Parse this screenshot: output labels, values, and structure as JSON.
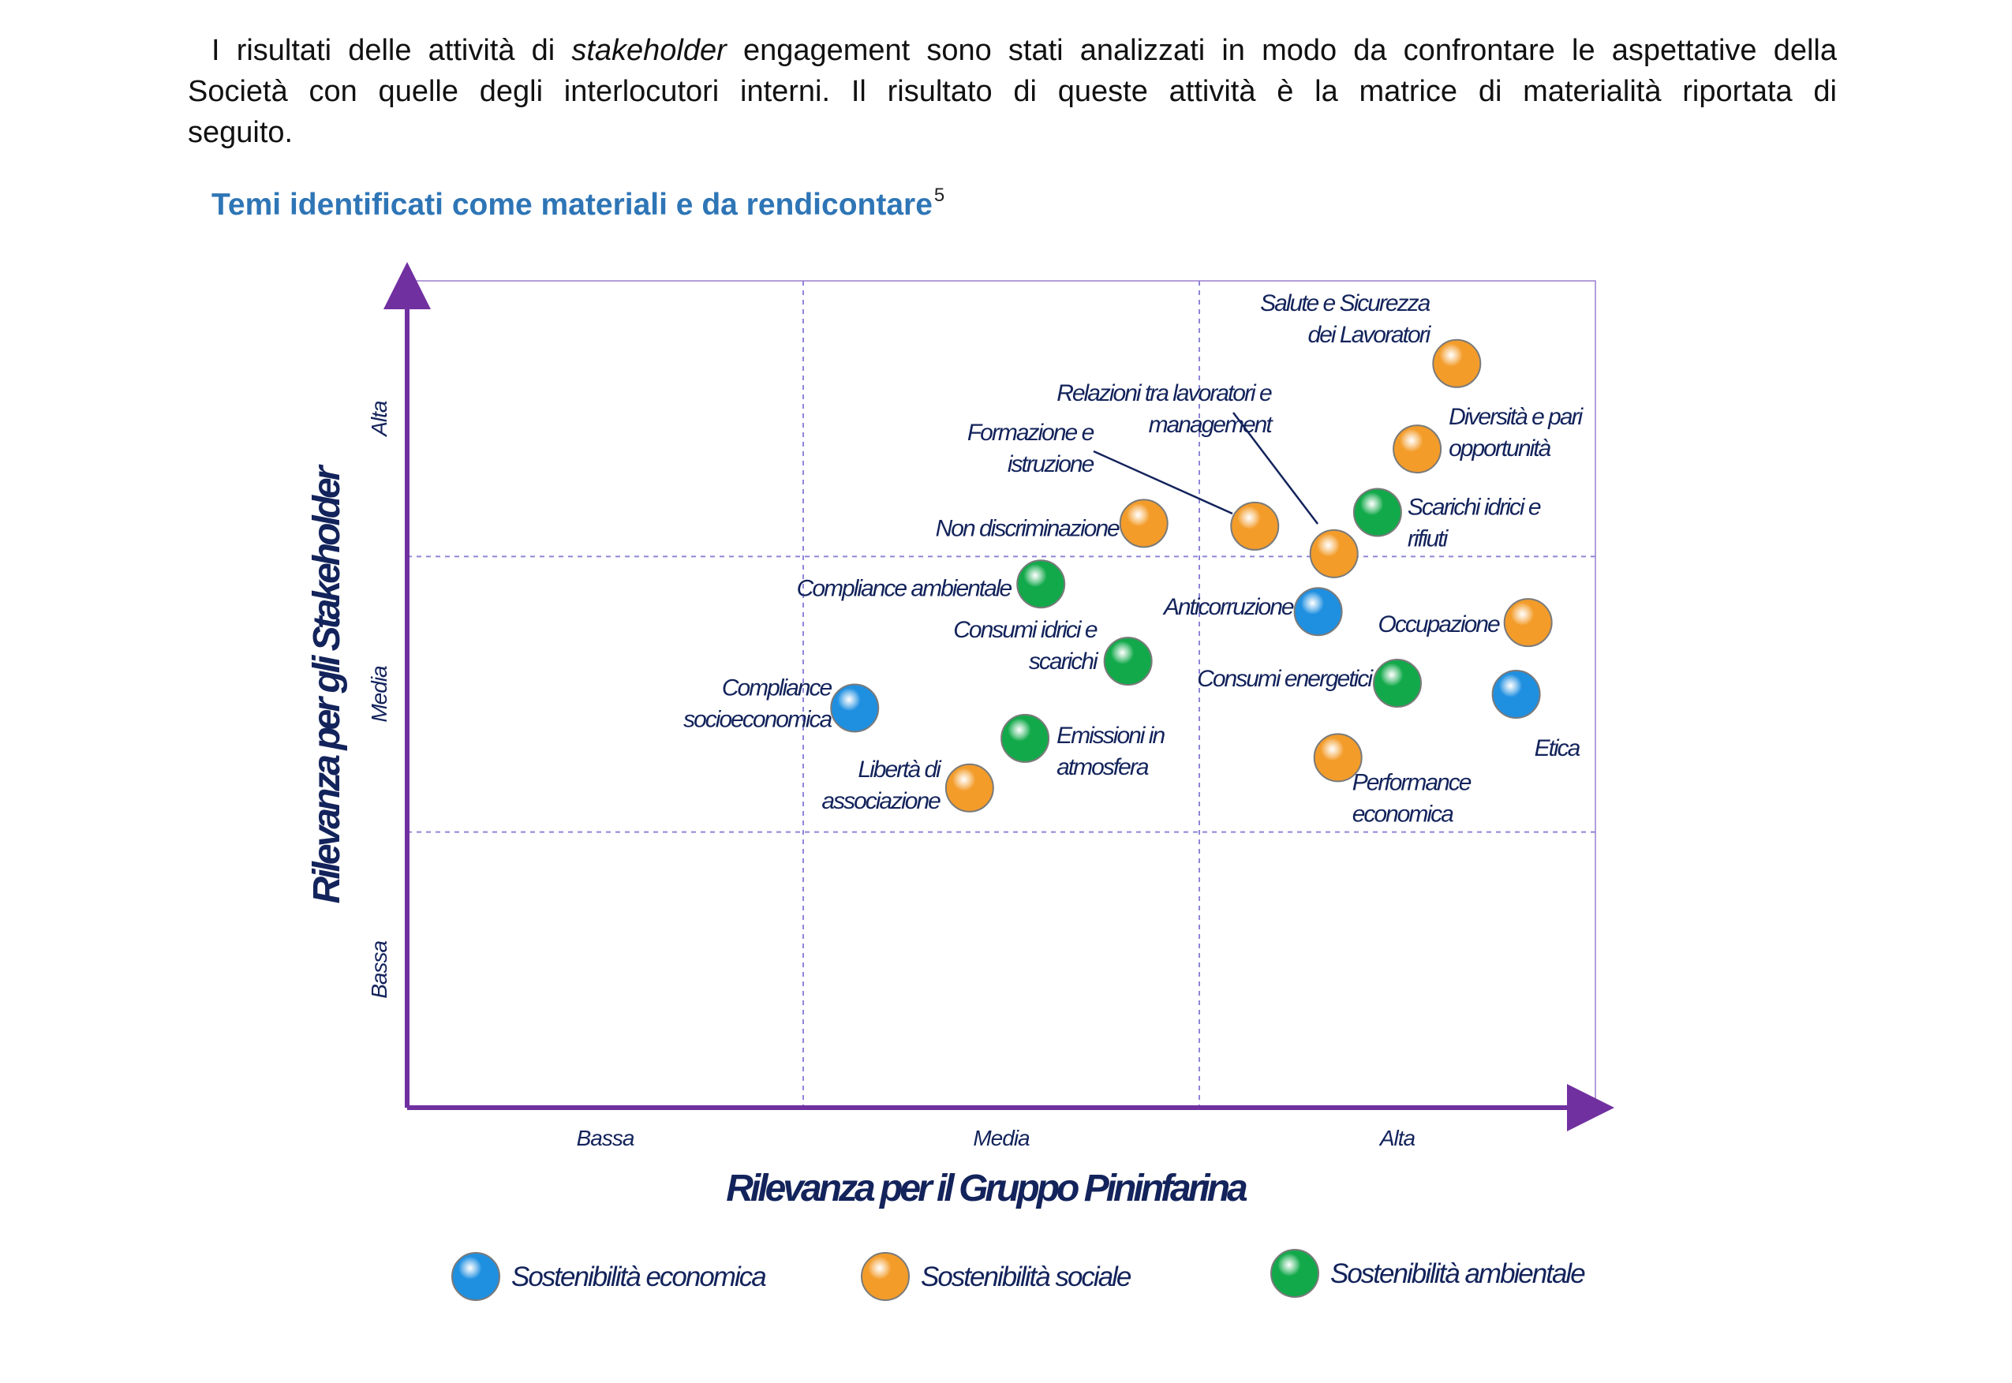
{
  "paragraph": {
    "lines": [
      {
        "parts": [
          {
            "t": "I risultati delle attività di ",
            "i": false
          },
          {
            "t": "stakeholder",
            "i": true
          },
          {
            "t": " engagement sono stati analizzati in modo da confrontare le aspettative della",
            "i": false
          }
        ]
      },
      {
        "parts": [
          {
            "t": "Società con quelle degli interlocutori interni. Il risultato di queste attività è la matrice di materialità riportata di",
            "i": false
          }
        ]
      },
      {
        "parts": [
          {
            "t": "seguito.",
            "i": false
          }
        ]
      }
    ]
  },
  "heading": {
    "title": "Temi identificati come materiali e da rendicontare",
    "footnote": "5"
  },
  "chart_data": {
    "type": "scatter",
    "xlabel": "Rilevanza per il Gruppo Pininfarina",
    "ylabel": "Rilevanza per gli Stakeholder",
    "xlim": [
      0,
      3
    ],
    "ylim": [
      0,
      3
    ],
    "x_ticks": [
      "Bassa",
      "Media",
      "Alta"
    ],
    "y_ticks": [
      "Bassa",
      "Media",
      "Alta"
    ],
    "grid": true,
    "legend_position": "bottom",
    "series": [
      {
        "name": "Sostenibilità economica",
        "color": "#1f8fe0"
      },
      {
        "name": "Sostenibilità sociale",
        "color": "#f39c2a"
      },
      {
        "name": "Sostenibilità ambientale",
        "color": "#12a94a"
      }
    ],
    "points": [
      {
        "label": [
          "Salute e Sicurezza",
          "dei Lavoratori"
        ],
        "x": 2.65,
        "y": 2.7,
        "series": 1
      },
      {
        "label": [
          "Relazioni tra lavoratori e",
          "management"
        ],
        "x": 2.34,
        "y": 2.01,
        "series": 1
      },
      {
        "label": [
          "Diversità e pari",
          "opportunità"
        ],
        "x": 2.55,
        "y": 2.39,
        "series": 1
      },
      {
        "label": [
          "Formazione e",
          "istruzione"
        ],
        "x": 2.14,
        "y": 2.11,
        "series": 1
      },
      {
        "label": [
          "Non discriminazione"
        ],
        "x": 1.86,
        "y": 2.12,
        "series": 1
      },
      {
        "label": [
          "Scarichi idrici e",
          "rifiuti"
        ],
        "x": 2.45,
        "y": 2.16,
        "series": 2
      },
      {
        "label": [
          "Compliance ambientale"
        ],
        "x": 1.6,
        "y": 1.9,
        "series": 2
      },
      {
        "label": [
          "Anticorruzione"
        ],
        "x": 2.3,
        "y": 1.8,
        "series": 0
      },
      {
        "label": [
          "Occupazione"
        ],
        "x": 2.83,
        "y": 1.76,
        "series": 1
      },
      {
        "label": [
          "Consumi idrici e",
          "scarichi"
        ],
        "x": 1.82,
        "y": 1.62,
        "series": 2
      },
      {
        "label": [
          "Consumi energetici"
        ],
        "x": 2.5,
        "y": 1.54,
        "series": 2
      },
      {
        "label": [
          "Etica"
        ],
        "x": 2.8,
        "y": 1.5,
        "series": 0
      },
      {
        "label": [
          "Compliance",
          "socioeconomica"
        ],
        "x": 1.13,
        "y": 1.45,
        "series": 0
      },
      {
        "label": [
          "Emissioni in",
          "atmosfera"
        ],
        "x": 1.56,
        "y": 1.34,
        "series": 2
      },
      {
        "label": [
          "Performance",
          "economica"
        ],
        "x": 2.35,
        "y": 1.27,
        "series": 1
      },
      {
        "label": [
          "Libertà di",
          "associazione"
        ],
        "x": 1.42,
        "y": 1.16,
        "series": 1
      }
    ]
  }
}
